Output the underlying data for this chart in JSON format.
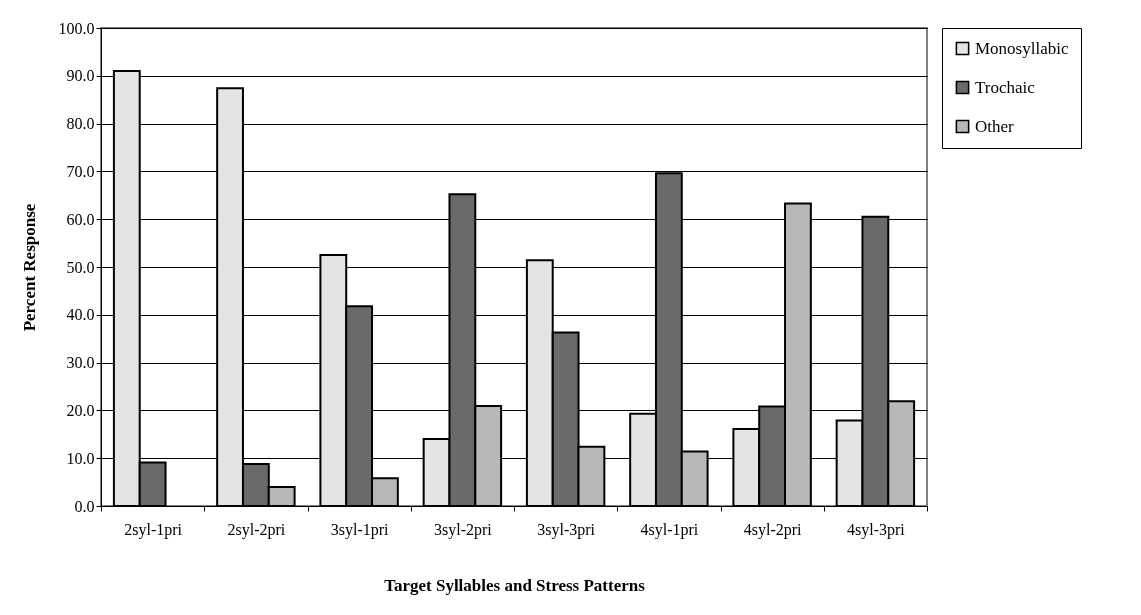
{
  "chart_data": {
    "type": "bar",
    "xlabel": "Target Syllables and Stress Patterns",
    "ylabel": "Percent Response",
    "categories": [
      "2syl-1pri",
      "2syl-2pri",
      "3syl-1pri",
      "3syl-2pri",
      "3syl-3pri",
      "4syl-1pri",
      "4syl-2pri",
      "4syl-3pri"
    ],
    "series": [
      {
        "name": "Monosyllabic",
        "color": "#e4e4e4",
        "values": [
          91.0,
          87.4,
          52.5,
          14.0,
          51.4,
          19.3,
          16.1,
          17.9
        ]
      },
      {
        "name": "Trochaic",
        "color": "#6a6a6a",
        "values": [
          9.1,
          8.8,
          41.8,
          65.2,
          36.3,
          69.6,
          20.8,
          60.5
        ]
      },
      {
        "name": "Other",
        "color": "#b8b8b8",
        "values": [
          null,
          4.0,
          5.8,
          20.9,
          12.4,
          11.4,
          63.3,
          21.9
        ]
      }
    ],
    "ylim": [
      0,
      100
    ],
    "yticks": [
      {
        "value": 0,
        "label": "0.0"
      },
      {
        "value": 10,
        "label": "10.0"
      },
      {
        "value": 20,
        "label": "20.0"
      },
      {
        "value": 30,
        "label": "30.0"
      },
      {
        "value": 40,
        "label": "40.0"
      },
      {
        "value": 50,
        "label": "50.0"
      },
      {
        "value": 60,
        "label": "60.0"
      },
      {
        "value": 70,
        "label": "70.0"
      },
      {
        "value": 80,
        "label": "80.0"
      },
      {
        "value": 90,
        "label": "90.0"
      },
      {
        "value": 100,
        "label": "100.0"
      }
    ],
    "grid": "y",
    "legend": "right"
  }
}
